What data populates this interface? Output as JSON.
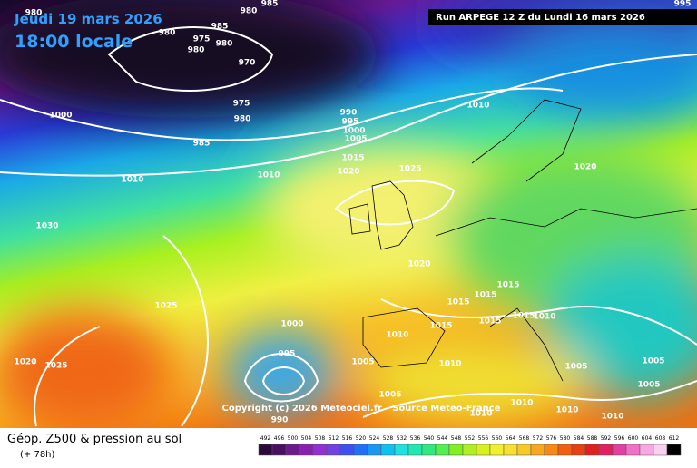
{
  "header": {
    "date": "Jeudi 19 mars 2026",
    "time": "18:00 locale",
    "run": "Run ARPEGE 12 Z du Lundi 16 mars 2026"
  },
  "copyright": "Copyright (c) 2026 Meteociel.fr - Source Meteo-France",
  "footer": {
    "title": "Géop. Z500 & pression au sol",
    "subtitle": "(+ 78h)"
  },
  "isobars": [
    "980",
    "985",
    "980",
    "985",
    "980",
    "975",
    "980",
    "980",
    "970",
    "1000",
    "975",
    "980",
    "985",
    "990",
    "995",
    "1000",
    "1005",
    "1010",
    "1015",
    "1025",
    "1020",
    "1010",
    "1010",
    "1020",
    "1030",
    "1020",
    "1025",
    "1015",
    "1015",
    "1015",
    "1015",
    "1015",
    "1010",
    "1015",
    "1000",
    "1010",
    "995",
    "1020",
    "1025",
    "1005",
    "1010",
    "1005",
    "1005",
    "1005",
    "1005",
    "1010",
    "1010",
    "1010",
    "1010",
    "990",
    "995"
  ],
  "legend": {
    "values": [
      492,
      496,
      500,
      504,
      508,
      512,
      516,
      520,
      524,
      528,
      532,
      536,
      540,
      544,
      548,
      552,
      556,
      560,
      564,
      568,
      572,
      576,
      580,
      584,
      588,
      592,
      596,
      600,
      604,
      608,
      612
    ]
  }
}
